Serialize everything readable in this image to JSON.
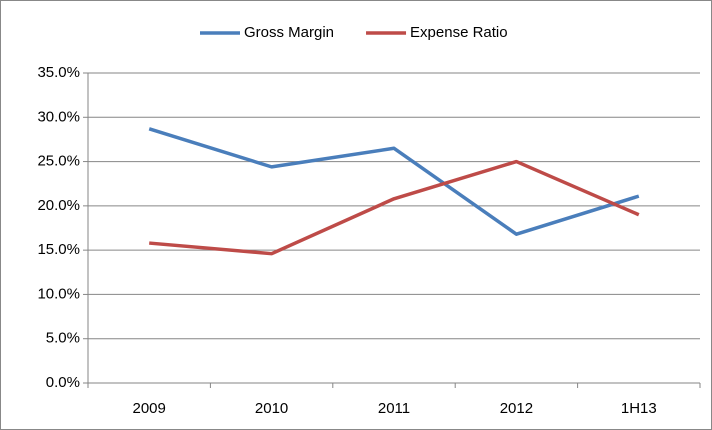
{
  "chart_data": {
    "type": "line",
    "categories": [
      "2009",
      "2010",
      "2011",
      "2012",
      "1H13"
    ],
    "series": [
      {
        "name": "Gross Margin",
        "color": "#4a7ebb",
        "values": [
          28.7,
          24.4,
          26.5,
          16.8,
          21.1
        ]
      },
      {
        "name": "Expense Ratio",
        "color": "#be4b48",
        "values": [
          15.8,
          14.6,
          20.8,
          25.0,
          19.0
        ]
      }
    ],
    "ylim": [
      0,
      35
    ],
    "yticks": [
      {
        "value": 0,
        "label": "0.0%"
      },
      {
        "value": 5,
        "label": "5.0%"
      },
      {
        "value": 10,
        "label": "10.0%"
      },
      {
        "value": 15,
        "label": "15.0%"
      },
      {
        "value": 20,
        "label": "20.0%"
      },
      {
        "value": 25,
        "label": "25.0%"
      },
      {
        "value": 30,
        "label": "30.0%"
      },
      {
        "value": 35,
        "label": "35.0%"
      }
    ],
    "grid": true,
    "legend": "top"
  }
}
